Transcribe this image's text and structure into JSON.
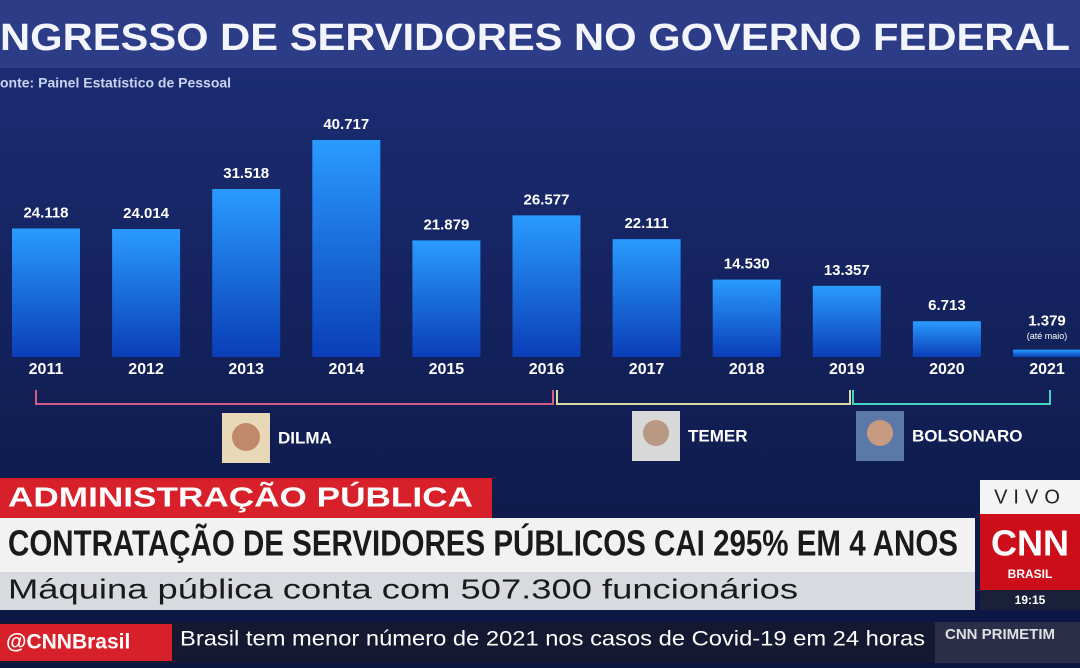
{
  "chart_data": {
    "type": "bar",
    "title": "NGRESSO DE SERVIDORES NO GOVERNO FEDERAL",
    "source": "onte: Painel Estatístico de Pessoal",
    "categories": [
      "2011",
      "2012",
      "2013",
      "2014",
      "2015",
      "2016",
      "2017",
      "2018",
      "2019",
      "2020",
      "2021"
    ],
    "values": [
      24118,
      24014,
      31518,
      40717,
      21879,
      26577,
      22111,
      14530,
      13357,
      6713,
      1379
    ],
    "value_labels": [
      "24.118",
      "24.014",
      "31.518",
      "40.717",
      "21.879",
      "26.577",
      "22.111",
      "14.530",
      "13.357",
      "6.713",
      "1.379"
    ],
    "annotation": "(até maio)",
    "periods": [
      "DILMA",
      "TEMER",
      "BOLSONARO"
    ],
    "color": "#1580f0"
  },
  "lower_third": {
    "section": "ADMINISTRAÇÃO PÚBLICA",
    "headline": "CONTRATAÇÃO DE SERVIDORES PÚBLICOS CAI 295% EM 4 ANOS",
    "subline": "Máquina pública conta com 507.300 funcionários",
    "live": "VIVO",
    "logo": "CNN",
    "logo_sub": "BRASIL",
    "time": "19:15",
    "handle": "@CNNBrasil",
    "ticker": "Brasil tem menor número de 2021 nos casos de Covid-19 em 24 horas",
    "next": "CNN PRIMETIM"
  }
}
